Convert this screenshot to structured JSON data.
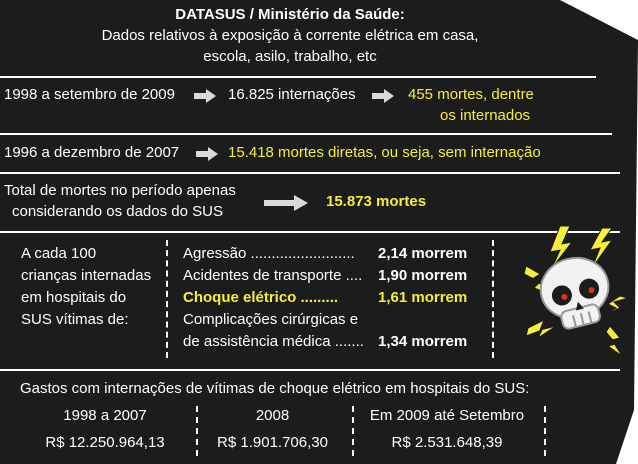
{
  "header": {
    "title": "DATASUS / Ministério da Saúde:",
    "line1": "Dados relativos à exposição à corrente elétrica em casa,",
    "line2": "escola, asilo, trabalho, etc"
  },
  "row1": {
    "period": "1998 a setembro de 2009",
    "internacoes": "16.825 internações",
    "mortes_a": "455 mortes, dentre",
    "mortes_b": "os internados"
  },
  "row2": {
    "period": "1996 a dezembro de 2007",
    "mortes": "15.418 mortes diretas, ou seja, sem internação"
  },
  "row3": {
    "label_a": "Total de mortes no período apenas",
    "label_b": "considerando os dados do SUS",
    "total": "15.873 mortes"
  },
  "children": {
    "intro": [
      "A cada 100",
      "crianças internadas",
      "em hospitais do",
      "SUS vítimas de:"
    ],
    "causes": [
      {
        "label": "Agressão .........................",
        "value": "2,14 morrem"
      },
      {
        "label": "Acidentes de transporte ....",
        "value": "1,90 morrem"
      },
      {
        "label": "Choque elétrico .........",
        "value": "1,61 morrem"
      },
      {
        "label_a": "Complicações cirúrgicas e",
        "label_b": "de assistência médica .......",
        "value": "1,34 morrem"
      }
    ]
  },
  "costs": {
    "title": "Gastos com internações de vítimas de choque elétrico em hospitais do SUS:",
    "columns": [
      {
        "period": "1998 a 2007",
        "value": "R$ 12.250.964,13"
      },
      {
        "period": "2008",
        "value": "R$ 1.901.706,30"
      },
      {
        "period": "Em 2009 até Setembro",
        "value": "R$ 2.531.648,39"
      }
    ]
  },
  "colors": {
    "background": "#1c1c1c",
    "accent": "#f5ee3a",
    "text": "#ffffff"
  },
  "icons": {
    "skull": "skull-icon",
    "bolt": "lightning-bolt-icon",
    "arrow": "arrow-right-icon"
  }
}
